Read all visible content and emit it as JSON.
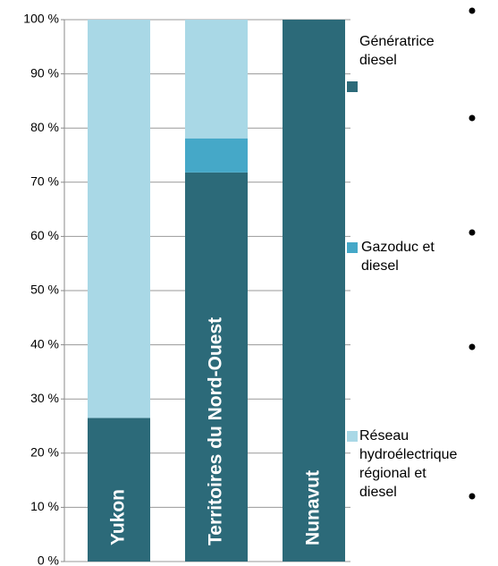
{
  "chart_data": {
    "type": "stacked_bar",
    "categories": [
      "Yukon",
      "Territoires du Nord-Ouest",
      "Nunavut"
    ],
    "series": [
      {
        "name": "Génératrice diesel",
        "color": "#2c6a79",
        "values": [
          26.5,
          71.8,
          100
        ]
      },
      {
        "name": "Gazoduc et diesel",
        "color": "#45a8c8",
        "values": [
          0,
          6.3,
          0
        ]
      },
      {
        "name": "Réseau hydroélectrique régional et diesel",
        "color": "#a9d8e6",
        "values": [
          73.5,
          21.9,
          0
        ]
      }
    ],
    "ylim": [
      0,
      100
    ],
    "yticks": [
      {
        "value": 0,
        "label": "0 %"
      },
      {
        "value": 10,
        "label": "10 %"
      },
      {
        "value": 20,
        "label": "20 %"
      },
      {
        "value": 30,
        "label": "30 %"
      },
      {
        "value": 40,
        "label": "40 %"
      },
      {
        "value": 50,
        "label": "50 %"
      },
      {
        "value": 60,
        "label": "60 %"
      },
      {
        "value": 70,
        "label": "70 %"
      },
      {
        "value": 80,
        "label": "80 %"
      },
      {
        "value": 90,
        "label": "90 %"
      },
      {
        "value": 100,
        "label": "100 %"
      }
    ],
    "grid": true
  }
}
